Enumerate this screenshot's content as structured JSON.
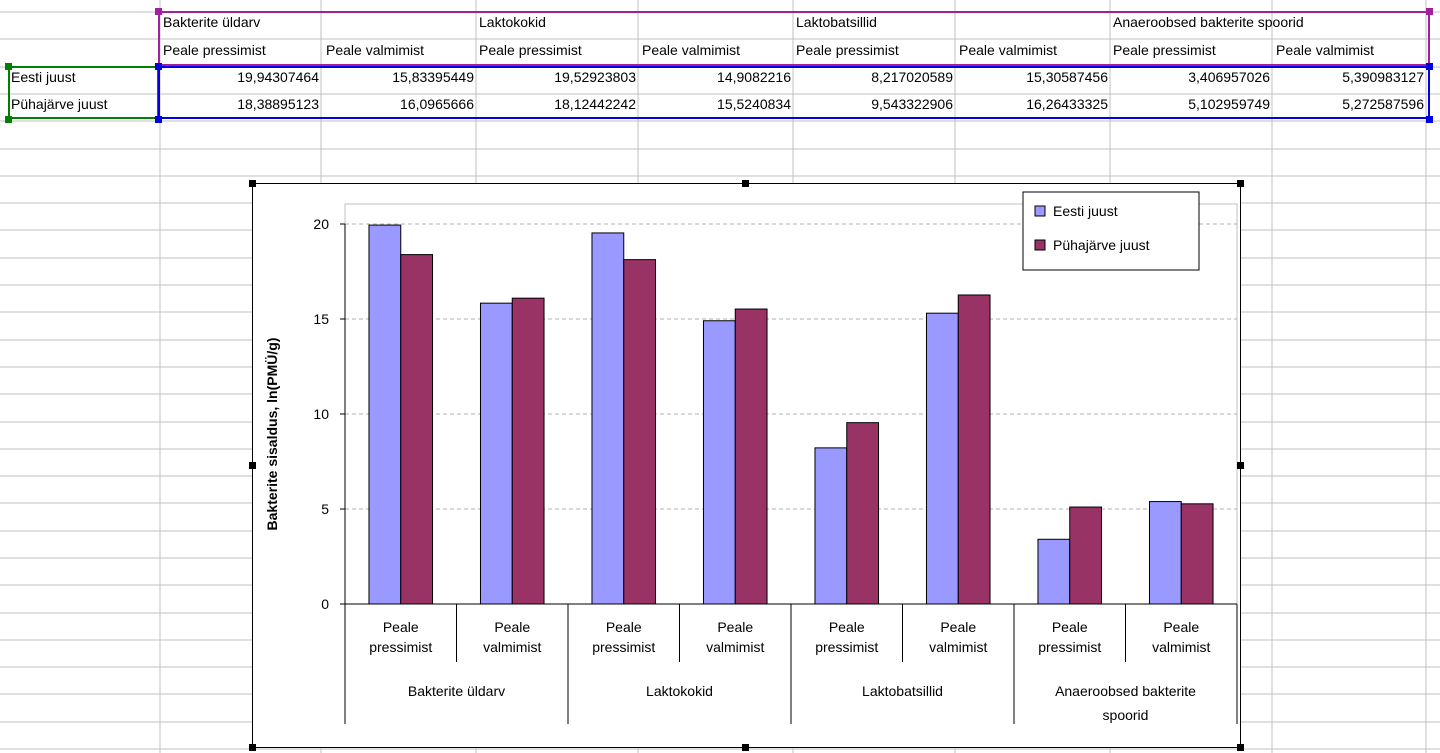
{
  "sheet": {
    "group_headers": [
      "Bakterite üldarv",
      "Laktokokid",
      "Laktobatsillid",
      "Anaeroobsed bakterite spoorid"
    ],
    "sub_headers": [
      "Peale pressimist",
      "Peale valmimist",
      "Peale pressimist",
      "Peale valmimist",
      "Peale pressimist",
      "Peale valmimist",
      "Peale pressimist",
      "Peale valmimist"
    ],
    "rows": [
      {
        "label": "Eesti juust",
        "values": [
          "19,94307464",
          "15,83395449",
          "19,52923803",
          "14,9082216",
          "8,217020589",
          "15,30587456",
          "3,406957026",
          "5,390983127"
        ]
      },
      {
        "label": "Pühajärve juust",
        "values": [
          "18,38895123",
          "16,0965666",
          "18,12442242",
          "15,5240834",
          "9,543322906",
          "16,26433325",
          "5,102959749",
          "5,272587596"
        ]
      }
    ],
    "colors": {
      "group_range": "#a020a0",
      "data_range": "#0000e0",
      "label_range": "#008000",
      "gridline": "#c0c0c0"
    }
  },
  "chart_data": {
    "type": "bar",
    "groups": [
      {
        "name": "Bakterite üldarv",
        "categories": [
          "Peale pressimist",
          "Peale valmimist"
        ]
      },
      {
        "name": "Laktokokid",
        "categories": [
          "Peale pressimist",
          "Peale valmimist"
        ]
      },
      {
        "name": "Laktobatsillid",
        "categories": [
          "Peale pressimist",
          "Peale valmimist"
        ]
      },
      {
        "name": "Anaeroobsed bakterite spoorid",
        "categories": [
          "Peale pressimist",
          "Peale valmimist"
        ]
      }
    ],
    "series": [
      {
        "name": "Eesti juust",
        "color": "#9999ff",
        "values": [
          19.94307464,
          15.83395449,
          19.52923803,
          14.9082216,
          8.217020589,
          15.30587456,
          3.406957026,
          5.390983127
        ]
      },
      {
        "name": "Pühajärve juust",
        "color": "#993366",
        "values": [
          18.38895123,
          16.0965666,
          18.12442242,
          15.5240834,
          9.543322906,
          16.26433325,
          5.102959749,
          5.272587596
        ]
      }
    ],
    "ylabel": "Bakterite sisaldus, ln(PMÜ/g)",
    "ylim": [
      0,
      20
    ],
    "yticks": [
      "0",
      "5",
      "10",
      "15",
      "20"
    ],
    "grid": true,
    "legend_position": "top-right"
  }
}
